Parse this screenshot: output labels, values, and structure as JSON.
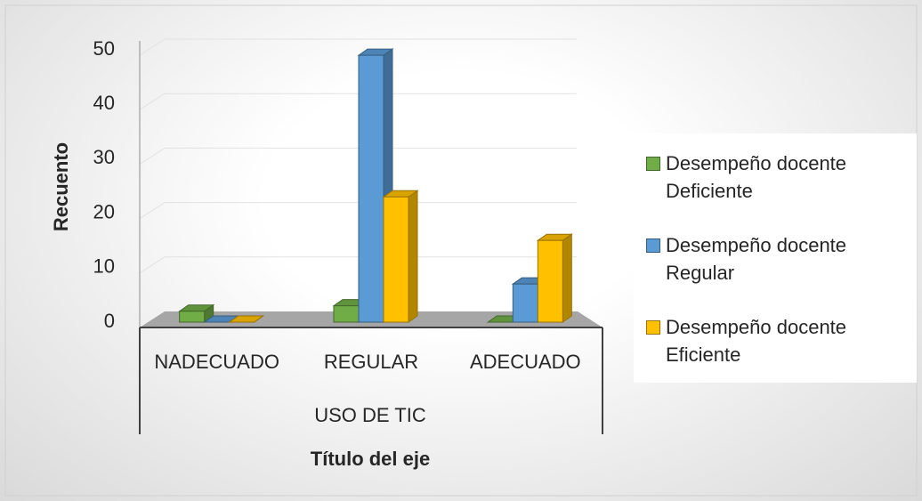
{
  "chart_data": {
    "type": "bar",
    "y_title": "Recuento",
    "x_title": "Título del eje",
    "group_label": "USO DE TIC",
    "categories": [
      "NADECUADO",
      "REGULAR",
      "ADECUADO"
    ],
    "series": [
      {
        "name": "Desempeño docente Deficiente",
        "color": "#70ad47",
        "values": [
          2,
          3,
          0
        ]
      },
      {
        "name": "Desempeño docente Regular",
        "color": "#5b9bd5",
        "values": [
          0,
          49,
          7
        ]
      },
      {
        "name": "Desempeño docente Eficiente",
        "color": "#ffc000",
        "values": [
          0,
          23,
          15
        ]
      }
    ],
    "ylim": [
      0,
      50
    ],
    "yticks": [
      0,
      10,
      20,
      30,
      40,
      50
    ],
    "grid": true,
    "legend": "right"
  }
}
